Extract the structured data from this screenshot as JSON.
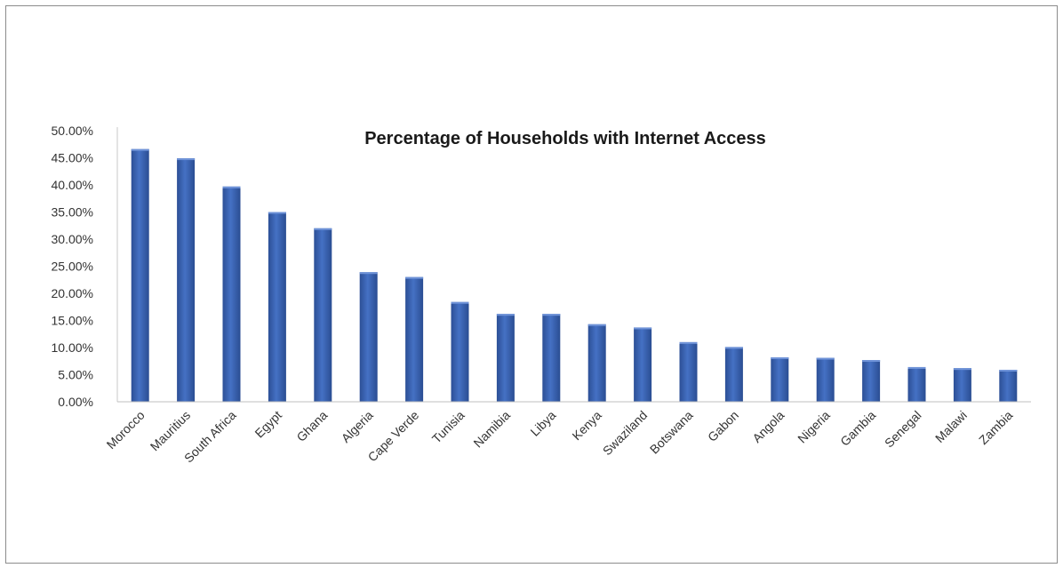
{
  "chart_data": {
    "type": "bar",
    "title": "Percentage of Households with Internet Access",
    "xlabel": "",
    "ylabel": "",
    "ylim": [
      0,
      0.5
    ],
    "yticks": [
      "0.00%",
      "5.00%",
      "10.00%",
      "15.00%",
      "20.00%",
      "25.00%",
      "30.00%",
      "35.00%",
      "40.00%",
      "45.00%",
      "50.00%"
    ],
    "categories": [
      "Morocco",
      "Mauritius",
      "South Africa",
      "Egypt",
      "Ghana",
      "Algeria",
      "Cape Verde",
      "Tunisia",
      "Namibia",
      "Libya",
      "Kenya",
      "Swaziland",
      "Botswana",
      "Gabon",
      "Angola",
      "Nigeria",
      "Gambia",
      "Senegal",
      "Malawi",
      "Zambia"
    ],
    "values": [
      0.466,
      0.449,
      0.397,
      0.35,
      0.32,
      0.239,
      0.23,
      0.184,
      0.162,
      0.162,
      0.143,
      0.137,
      0.11,
      0.101,
      0.082,
      0.081,
      0.077,
      0.064,
      0.062,
      0.059
    ],
    "grid": false,
    "bar_color": "#3b64b3"
  }
}
